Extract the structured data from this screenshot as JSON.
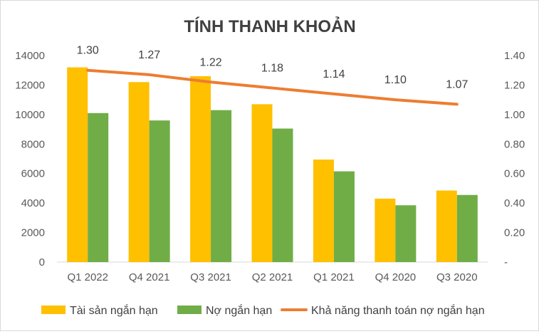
{
  "chart_data": {
    "type": "bar",
    "title": "TÍNH THANH KHOẢN",
    "categories": [
      "Q1 2022",
      "Q4 2021",
      "Q3 2021",
      "Q2 2021",
      "Q1 2021",
      "Q4 2020",
      "Q3 2020"
    ],
    "series": [
      {
        "name": "Tài sản ngắn hạn",
        "type": "bar",
        "axis": "left",
        "color": "#FFC000",
        "values": [
          13200,
          12200,
          12600,
          10700,
          6950,
          4300,
          4850
        ]
      },
      {
        "name": "Nợ ngắn hạn",
        "type": "bar",
        "axis": "left",
        "color": "#70AD47",
        "values": [
          10100,
          9600,
          10300,
          9050,
          6150,
          3850,
          4550
        ]
      },
      {
        "name": "Khả năng thanh toán nợ ngắn hạn",
        "type": "line",
        "axis": "right",
        "color": "#ED7D31",
        "values": [
          1.3,
          1.27,
          1.22,
          1.18,
          1.14,
          1.1,
          1.07
        ],
        "labels": [
          "1.30",
          "1.27",
          "1.22",
          "1.18",
          "1.14",
          "1.10",
          "1.07"
        ]
      }
    ],
    "y_left": {
      "min": 0,
      "max": 14000,
      "ticks": [
        "0",
        "2000",
        "4000",
        "6000",
        "8000",
        "10000",
        "12000",
        "14000"
      ]
    },
    "y_right": {
      "min": 0,
      "max": 1.4,
      "ticks": [
        "-",
        "0.20",
        "0.40",
        "0.60",
        "0.80",
        "1.00",
        "1.20",
        "1.40"
      ]
    },
    "grid": false,
    "legend": "bottom"
  }
}
